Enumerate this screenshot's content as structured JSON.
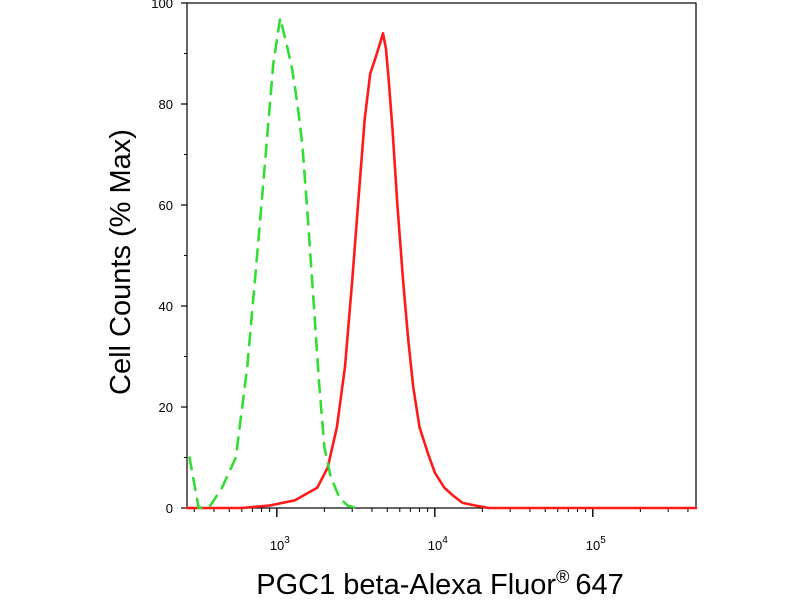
{
  "chart_data": {
    "type": "line",
    "xlabel": "PGC1 beta-Alexa Fluor",
    "xlabel_superscript": "®",
    "xlabel_suffix": "647",
    "ylabel": "Cell Counts (% Max)",
    "x_scale": "log",
    "xlim": [
      270,
      450000
    ],
    "ylim": [
      0,
      100
    ],
    "x_ticks": [
      {
        "value": 1000,
        "base": "10",
        "exp": "3"
      },
      {
        "value": 10000,
        "base": "10",
        "exp": "4"
      },
      {
        "value": 100000,
        "base": "10",
        "exp": "5"
      }
    ],
    "y_ticks": [
      0,
      20,
      40,
      60,
      80,
      100
    ],
    "grid": false,
    "series": [
      {
        "color": "#ff1a1a",
        "dash": "solid",
        "x": [
          270,
          600,
          900,
          1300,
          1800,
          2100,
          2400,
          2700,
          3000,
          3300,
          3600,
          3900,
          4200,
          4500,
          4700,
          4900,
          5100,
          5400,
          5800,
          6300,
          6800,
          7300,
          8000,
          9000,
          10000,
          11500,
          13000,
          15000,
          18000,
          22000,
          30000,
          60000,
          150000,
          450000
        ],
        "y": [
          0,
          0,
          0.5,
          1.5,
          4,
          8,
          16,
          28,
          45,
          62,
          77,
          86,
          89,
          92,
          94,
          91,
          85,
          75,
          60,
          45,
          33,
          24,
          16,
          11,
          7,
          4,
          2.5,
          1,
          0.5,
          0,
          0,
          0,
          0,
          0
        ]
      },
      {
        "color": "#33dd33",
        "dash": "dashed",
        "x": [
          280,
          320,
          380,
          450,
          550,
          650,
          750,
          850,
          950,
          1050,
          1150,
          1250,
          1350,
          1450,
          1550,
          1700,
          1850,
          2000,
          2200,
          2500,
          2800,
          3200
        ],
        "y": [
          10,
          0,
          0.5,
          4,
          10,
          28,
          50,
          70,
          88,
          97,
          92,
          87,
          80,
          72,
          60,
          42,
          25,
          12,
          6,
          2,
          0.5,
          0
        ]
      }
    ]
  }
}
